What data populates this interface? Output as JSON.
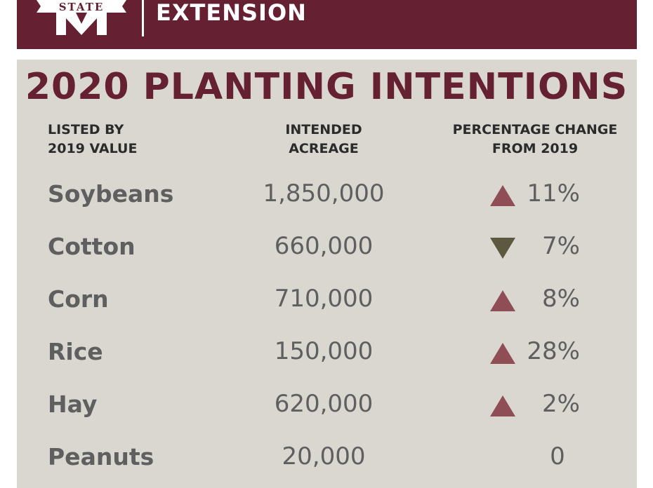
{
  "header": {
    "logo_text": "STATE",
    "brand": "EXTENSION"
  },
  "chart_data": {
    "type": "table",
    "title": "2020 PLANTING INTENTIONS",
    "columns": [
      [
        "LISTED BY",
        "2019 VALUE"
      ],
      [
        "INTENDED",
        "ACREAGE"
      ],
      [
        "PERCENTAGE CHANGE",
        "FROM 2019"
      ]
    ],
    "rows": [
      {
        "crop": "Soybeans",
        "acreage": "1,850,000",
        "direction": "up",
        "change": "11%"
      },
      {
        "crop": "Cotton",
        "acreage": "660,000",
        "direction": "down",
        "change": "7%"
      },
      {
        "crop": "Corn",
        "acreage": "710,000",
        "direction": "up",
        "change": "8%"
      },
      {
        "crop": "Rice",
        "acreage": "150,000",
        "direction": "up",
        "change": "28%"
      },
      {
        "crop": "Hay",
        "acreage": "620,000",
        "direction": "up",
        "change": "2%"
      },
      {
        "crop": "Peanuts",
        "acreage": "20,000",
        "direction": "none",
        "change": "0"
      }
    ]
  },
  "colors": {
    "maroon": "#652031",
    "panel": "#d9d7d0",
    "text_gray": "#5f5f5f",
    "up_arrow": "#8f4d56",
    "down_arrow": "#5d5840"
  }
}
